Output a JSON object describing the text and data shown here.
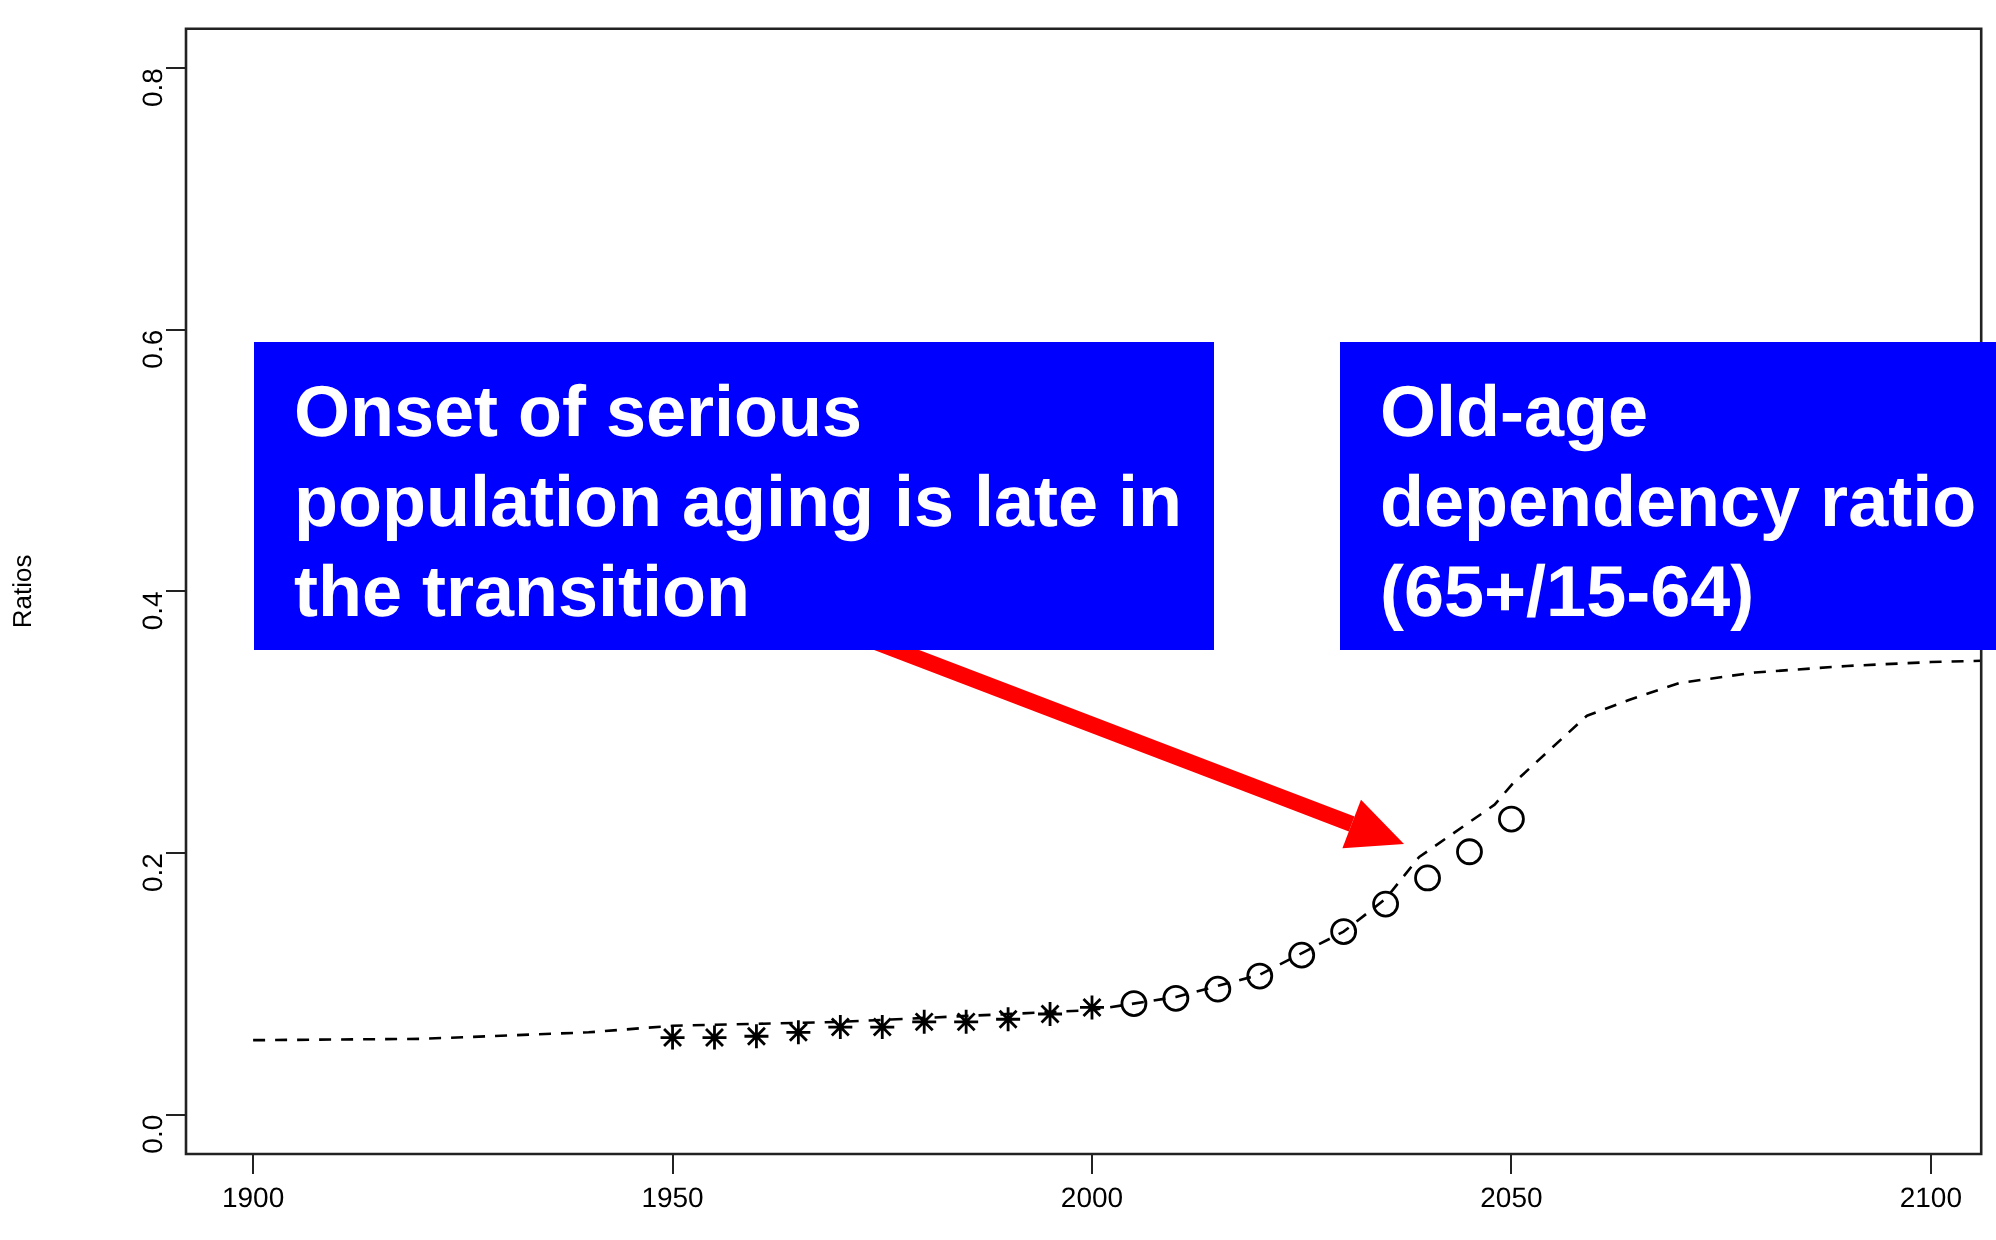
{
  "chart_data": {
    "type": "line",
    "ylabel": "Ratios",
    "xlim": [
      1892,
      2106
    ],
    "xticks": [
      1900,
      1950,
      2000,
      2050,
      2100
    ],
    "ylim": [
      -0.03,
      0.83
    ],
    "yticks": [
      {
        "value": 0,
        "label": "0.0"
      },
      {
        "value": 0.2,
        "label": "0.2"
      },
      {
        "value": 0.4,
        "label": "0.4"
      },
      {
        "value": 0.6,
        "label": "0.6"
      },
      {
        "value": 0.8,
        "label": "0.8"
      }
    ],
    "grid": false,
    "legend": false,
    "series": [
      {
        "color": "#000000",
        "line_style": "dashed",
        "marker": "none",
        "x": [
          1900,
          1920,
          1940,
          1950,
          1970,
          2000,
          2010,
          2020,
          2030,
          2035,
          2039,
          2048,
          2050,
          2059,
          2064,
          2070,
          2079,
          2090,
          2100,
          2106
        ],
        "values": [
          0.057,
          0.058,
          0.063,
          0.068,
          0.071,
          0.08,
          0.09,
          0.107,
          0.14,
          0.165,
          0.197,
          0.237,
          0.252,
          0.305,
          0.317,
          0.33,
          0.338,
          0.343,
          0.346,
          0.347
        ]
      },
      {
        "type": "scatter",
        "color": "#000000",
        "marker": "cross",
        "x": [
          1950,
          1955,
          1960,
          1965,
          1970,
          1975,
          1980,
          1985,
          1990,
          1995,
          2000
        ],
        "values": [
          0.059,
          0.059,
          0.06,
          0.063,
          0.067,
          0.067,
          0.071,
          0.071,
          0.073,
          0.077,
          0.082
        ]
      },
      {
        "type": "scatter",
        "color": "#000000",
        "marker": "circle",
        "x": [
          2005,
          2010,
          2015,
          2020,
          2025,
          2030,
          2035,
          2040,
          2045,
          2050
        ],
        "values": [
          0.085,
          0.089,
          0.096,
          0.106,
          0.122,
          0.14,
          0.161,
          0.181,
          0.201,
          0.226
        ]
      }
    ],
    "annotations": [
      "Onset of serious population aging is late in the transition",
      "Old-age dependency ratio (65+/15-64)"
    ]
  }
}
